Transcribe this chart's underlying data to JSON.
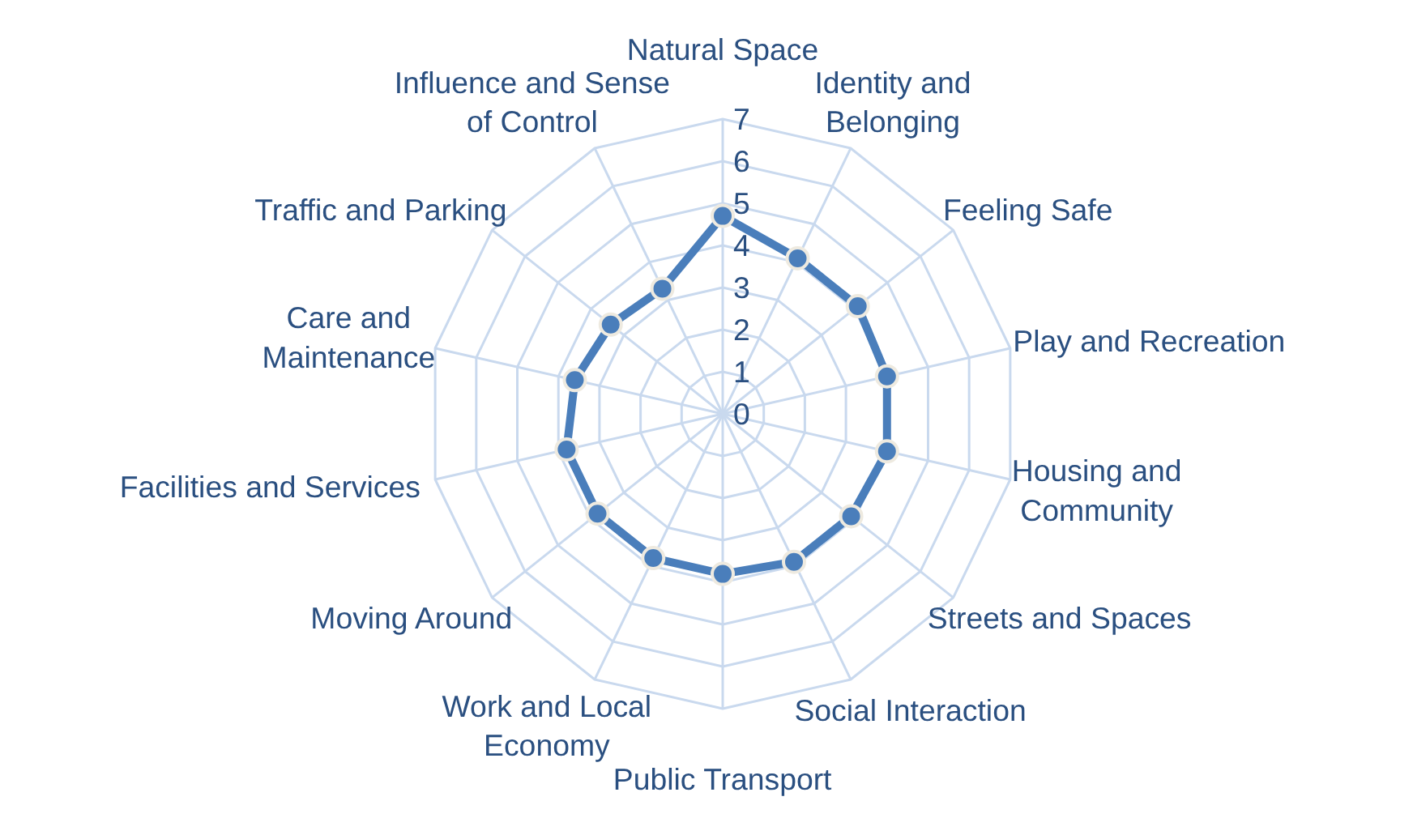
{
  "chart_data": {
    "type": "radar",
    "categories": [
      "Natural Space",
      "Identity and\nBelonging",
      "Feeling Safe",
      "Play and Recreation",
      "Housing and\nCommunity",
      "Streets and Spaces",
      "Social Interaction",
      "Public Transport",
      "Work and Local\nEconomy",
      "Moving Around",
      "Facilities and Services",
      "Care and\nMaintenance",
      "Traffic and Parking",
      "Influence and Sense\nof Control"
    ],
    "series": [
      {
        "color": "#4a7ebb",
        "values": [
          4.7,
          4.1,
          4.1,
          4.0,
          4.0,
          3.9,
          3.9,
          3.8,
          3.8,
          3.8,
          3.8,
          3.6,
          3.4,
          3.3
        ]
      }
    ],
    "ylim": [
      0,
      7
    ],
    "yticks": [
      0,
      1,
      2,
      3,
      4,
      5,
      6,
      7
    ],
    "grid": true,
    "marker": "circle"
  }
}
